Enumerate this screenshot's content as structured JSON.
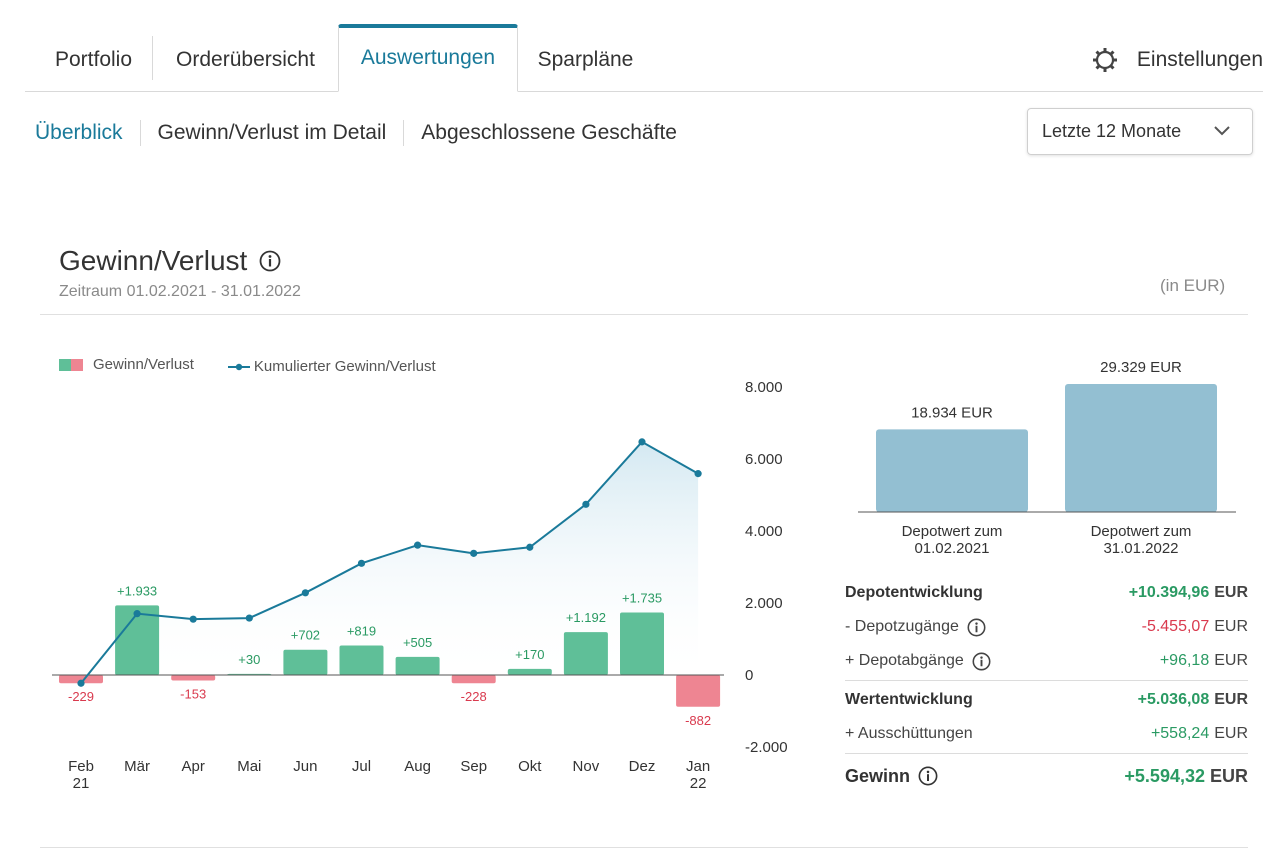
{
  "tabs": [
    {
      "label": "Portfolio"
    },
    {
      "label": "Orderübersicht"
    },
    {
      "label": "Auswertungen"
    },
    {
      "label": "Sparpläne"
    }
  ],
  "settings_label": "Einstellungen",
  "subnav": [
    {
      "label": "Überblick"
    },
    {
      "label": "Gewinn/Verlust im Detail"
    },
    {
      "label": "Abgeschlossene Geschäfte"
    }
  ],
  "period_select": {
    "value": "Letzte 12 Monate"
  },
  "section": {
    "title": "Gewinn/Verlust",
    "period": "Zeitraum 01.02.2021 - 31.01.2022",
    "unit": "(in EUR)"
  },
  "legend": {
    "bars": "Gewinn/Verlust",
    "line": "Kumulierter Gewinn/Verlust"
  },
  "colors": {
    "accent": "#1a7a9a",
    "gain": "#5fbf98",
    "loss": "#ee8592",
    "line": "#1a7a9a",
    "depot": "#93bfd2"
  },
  "chart_data": [
    {
      "type": "bar",
      "categories": [
        "Feb 21",
        "Mär",
        "Apr",
        "Mai",
        "Jun",
        "Jul",
        "Aug",
        "Sep",
        "Okt",
        "Nov",
        "Dez",
        "Jan 22"
      ],
      "x_tick_lines": [
        [
          "Feb",
          "21"
        ],
        [
          "Mär"
        ],
        [
          "Apr"
        ],
        [
          "Mai"
        ],
        [
          "Jun"
        ],
        [
          "Jul"
        ],
        [
          "Aug"
        ],
        [
          "Sep"
        ],
        [
          "Okt"
        ],
        [
          "Nov"
        ],
        [
          "Dez"
        ],
        [
          "Jan",
          "22"
        ]
      ],
      "series": [
        {
          "name": "Gewinn/Verlust",
          "type": "bar",
          "values": [
            -229,
            1933,
            -153,
            30,
            702,
            819,
            505,
            -228,
            170,
            1192,
            1735,
            -882
          ],
          "labels": [
            "-229",
            "+1.933",
            "-153",
            "+30",
            "+702",
            "+819",
            "+505",
            "-228",
            "+170",
            "+1.192",
            "+1.735",
            "-882"
          ]
        },
        {
          "name": "Kumulierter Gewinn/Verlust",
          "type": "line",
          "values": [
            -229,
            1704,
            1551,
            1581,
            2283,
            3102,
            3607,
            3379,
            3549,
            4741,
            6476,
            5594
          ]
        }
      ],
      "yticks": [
        "8.000",
        "6.000",
        "4.000",
        "2.000",
        "0",
        "-2.000"
      ],
      "ytick_values": [
        8000,
        6000,
        4000,
        2000,
        0,
        -2000
      ],
      "ylim": [
        -2000,
        8000
      ],
      "legend_position": "top-left"
    },
    {
      "type": "bar",
      "categories": [
        [
          "Depotwert zum",
          "01.02.2021"
        ],
        [
          "Depotwert zum",
          "31.01.2022"
        ]
      ],
      "values": [
        18934,
        29329
      ],
      "labels": [
        "18.934 EUR",
        "29.329 EUR"
      ]
    }
  ],
  "summary": {
    "depotentwicklung": {
      "label": "Depotentwicklung",
      "value": "+10.394,96",
      "cur": "EUR"
    },
    "depotzugaenge": {
      "label": "- Depotzugänge",
      "value": "-5.455,07",
      "cur": "EUR"
    },
    "depotabgaenge": {
      "label": "+ Depotabgänge",
      "value": "+96,18",
      "cur": "EUR"
    },
    "wertentwicklung": {
      "label": "Wertentwicklung",
      "value": "+5.036,08",
      "cur": "EUR"
    },
    "ausschuettungen": {
      "label": "+ Ausschüttungen",
      "value": "+558,24",
      "cur": "EUR"
    },
    "gewinn": {
      "label": "Gewinn",
      "value": "+5.594,32",
      "cur": "EUR"
    }
  }
}
